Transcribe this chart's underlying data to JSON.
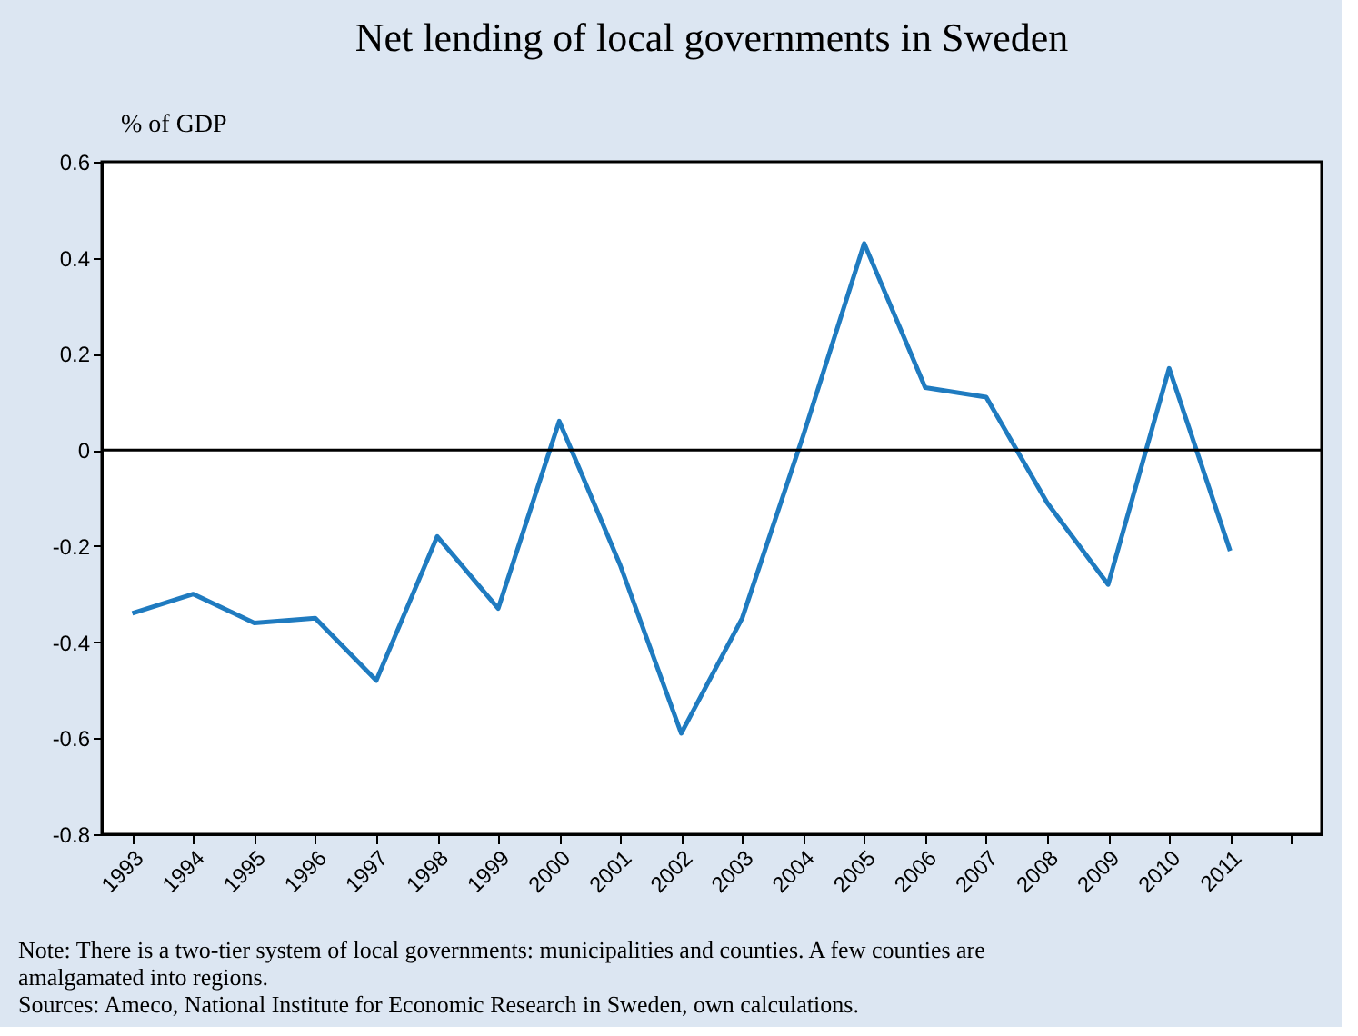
{
  "chart_data": {
    "type": "line",
    "title": "Net lending of local governments in Sweden",
    "ylabel": "% of GDP",
    "categories": [
      "1993",
      "1994",
      "1995",
      "1996",
      "1997",
      "1998",
      "1999",
      "2000",
      "2001",
      "2002",
      "2003",
      "2004",
      "2005",
      "2006",
      "2007",
      "2008",
      "2009",
      "2010",
      "2011",
      null
    ],
    "series": [
      {
        "color": "#1f7bc0",
        "values": [
          -0.34,
          -0.3,
          -0.36,
          -0.35,
          -0.48,
          -0.18,
          -0.33,
          0.06,
          -0.24,
          -0.59,
          -0.35,
          0.03,
          0.43,
          0.13,
          0.11,
          -0.11,
          -0.28,
          0.17,
          -0.21,
          null
        ]
      }
    ],
    "ylim": [
      -0.8,
      0.6
    ],
    "yticks": [
      {
        "value": -0.8,
        "label": "-0.8"
      },
      {
        "value": -0.6,
        "label": "-0.6"
      },
      {
        "value": -0.4,
        "label": "-0.4"
      },
      {
        "value": -0.2,
        "label": "-0.2"
      },
      0,
      {
        "value": 0.2,
        "label": "0.2"
      },
      {
        "value": 0.4,
        "label": "0.4"
      },
      {
        "value": 0.6,
        "label": "0.6"
      }
    ],
    "ref_lines": [
      {
        "axis": "y",
        "value": 0,
        "color": "#000000"
      }
    ],
    "grid": false,
    "marker": "none",
    "line_style": "solid",
    "annotations": [
      "Note: There is a two-tier system of local governments: municipalities and counties. A few counties are amalgamated into regions.",
      "Sources: Ameco, National Institute for Economic Research in Sweden, own calculations."
    ]
  }
}
